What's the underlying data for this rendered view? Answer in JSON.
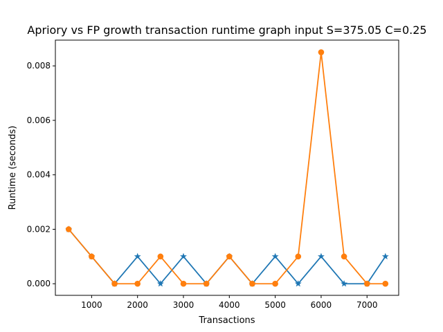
{
  "chart_data": {
    "type": "line",
    "title": "Apriory vs FP growth transaction runtime graph input S=375.05 C=0.25",
    "xlabel": "Transactions",
    "ylabel": "Runtime (seconds)",
    "xlim": [
      210,
      7690
    ],
    "ylim": [
      -0.000426,
      0.008946
    ],
    "x_ticks": [
      1000,
      2000,
      3000,
      4000,
      5000,
      6000,
      7000
    ],
    "x_tick_labels": [
      "1000",
      "2000",
      "3000",
      "4000",
      "5000",
      "6000",
      "7000"
    ],
    "y_ticks": [
      0.0,
      0.002,
      0.004,
      0.006,
      0.008
    ],
    "y_tick_labels": [
      "0.000",
      "0.002",
      "0.004",
      "0.006",
      "0.008"
    ],
    "grid": false,
    "x": [
      500,
      1000,
      1500,
      2000,
      2500,
      3000,
      3500,
      4000,
      4500,
      5000,
      5500,
      6000,
      6500,
      7000,
      7400
    ],
    "series": [
      {
        "marker": "star",
        "color": "#1f77b4",
        "values": [
          0.002,
          0.001,
          0.0,
          0.001,
          0.0,
          0.001,
          0.0,
          0.001,
          0.0,
          0.001,
          0.0,
          0.001,
          0.0,
          0.0,
          0.001
        ]
      },
      {
        "marker": "circle",
        "color": "#ff7f0e",
        "values": [
          0.002,
          0.001,
          0.0,
          0.0,
          0.001,
          0.0,
          0.0,
          0.001,
          0.0,
          0.0,
          0.001,
          0.0085,
          0.001,
          0.0,
          0.0
        ]
      }
    ]
  }
}
